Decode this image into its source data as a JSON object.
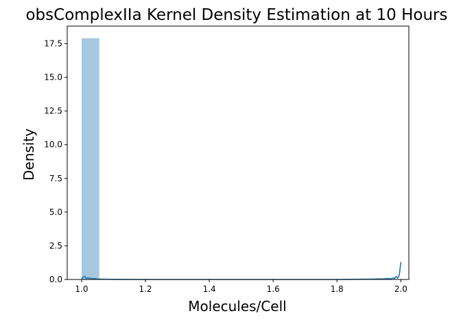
{
  "chart_data": {
    "type": "bar",
    "title": "obsComplexIIa Kernel Density Estimation at 10 Hours",
    "xlabel": "Molecules/Cell",
    "ylabel": "Density",
    "xlim": [
      0.955,
      2.025
    ],
    "ylim": [
      0.0,
      18.8
    ],
    "xticks": [
      1.0,
      1.2,
      1.4,
      1.6,
      1.8,
      2.0
    ],
    "xtick_labels": [
      "1.0",
      "1.2",
      "1.4",
      "1.6",
      "1.8",
      "2.0"
    ],
    "yticks": [
      0.0,
      2.5,
      5.0,
      7.5,
      10.0,
      12.5,
      15.0,
      17.5
    ],
    "ytick_labels": [
      "0.0",
      "2.5",
      "5.0",
      "7.5",
      "10.0",
      "12.5",
      "15.0",
      "17.5"
    ],
    "grid": false,
    "histogram": {
      "bin_edges": [
        1.0,
        1.0556
      ],
      "values": [
        17.9
      ],
      "color": "#a6c8e0"
    },
    "kde": {
      "color": "#1f77b4",
      "x": [
        1.0,
        1.005,
        1.01,
        1.015,
        1.02,
        1.025,
        1.03,
        1.035,
        1.04,
        1.05,
        1.07,
        1.1,
        1.2,
        1.4,
        1.6,
        1.8,
        1.9,
        1.95,
        1.96,
        1.97,
        1.975,
        1.98,
        1.985,
        1.99,
        1.995,
        2.0
      ],
      "y": [
        0.05,
        0.18,
        0.22,
        0.08,
        0.13,
        0.06,
        0.1,
        0.04,
        0.07,
        0.03,
        0.02,
        0.01,
        0.0,
        0.0,
        0.0,
        0.0,
        0.02,
        0.05,
        0.08,
        0.05,
        0.12,
        0.07,
        0.22,
        0.1,
        0.3,
        1.3
      ]
    }
  }
}
